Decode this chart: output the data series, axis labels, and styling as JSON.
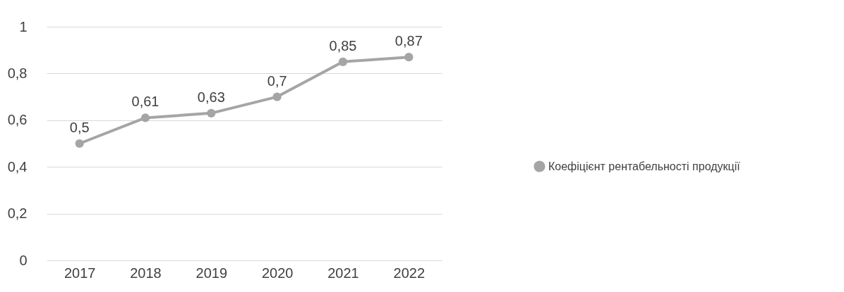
{
  "chart_data": {
    "type": "line",
    "categories": [
      "2017",
      "2018",
      "2019",
      "2020",
      "2021",
      "2022"
    ],
    "series": [
      {
        "name": "Коефіцієнт рентабельності продукції",
        "color": "#a5a5a5",
        "values": [
          0.5,
          0.61,
          0.63,
          0.7,
          0.85,
          0.87
        ],
        "value_labels": [
          "0,5",
          "0,61",
          "0,63",
          "0,7",
          "0,85",
          "0,87"
        ]
      }
    ],
    "ylim": [
      0,
      1
    ],
    "yticks": [
      0,
      {
        "value": 0.2,
        "label": "0,2"
      },
      {
        "value": 0.4,
        "label": "0,4"
      },
      {
        "value": 0.6,
        "label": "0,6"
      },
      {
        "value": 0.8,
        "label": "0,8"
      },
      1
    ],
    "grid": "y",
    "legend": "right",
    "marker": "circle",
    "line_style": "solid"
  }
}
